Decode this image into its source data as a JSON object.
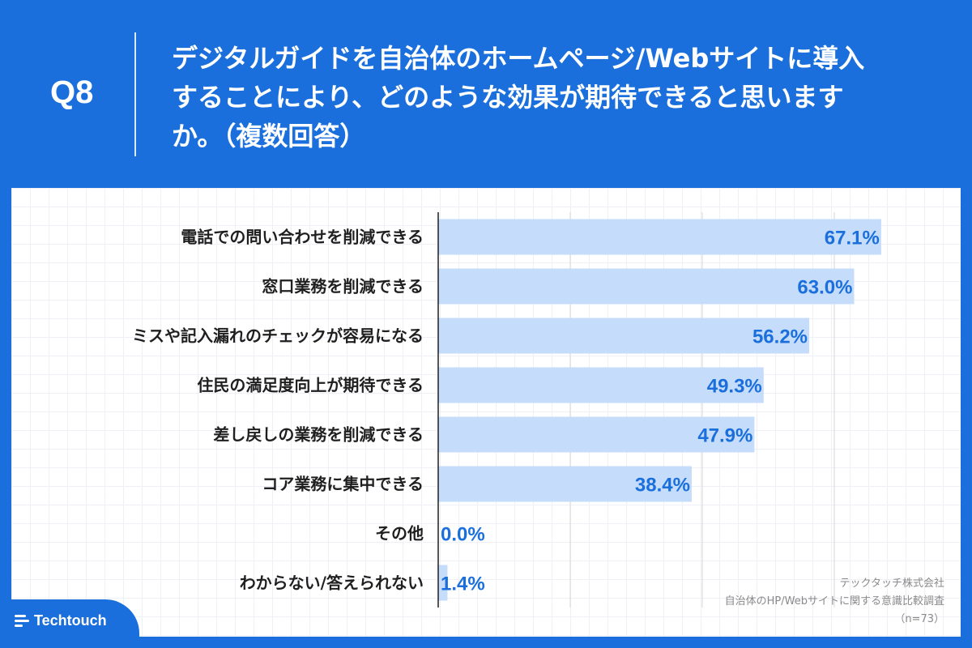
{
  "header": {
    "question_number": "Q8",
    "title": "デジタルガイドを自治体のホームページ/Webサイトに導入することにより、どのような効果が期待できると思いますか。（複数回答）"
  },
  "chart_data": {
    "type": "bar",
    "orientation": "horizontal",
    "title": "デジタルガイドを自治体のホームページ/Webサイトに導入することにより、どのような効果が期待できると思いますか。（複数回答）",
    "categories": [
      "電話での問い合わせを削減できる",
      "窓口業務を削減できる",
      "ミスや記入漏れのチェックが容易になる",
      "住民の満足度向上が期待できる",
      "差し戻しの業務を削減できる",
      "コア業務に集中できる",
      "その他",
      "わからない/答えられない"
    ],
    "values": [
      67.1,
      63.0,
      56.2,
      49.3,
      47.9,
      38.4,
      0.0,
      1.4
    ],
    "value_labels": [
      "67.1%",
      "63.0%",
      "56.2%",
      "49.3%",
      "47.9%",
      "38.4%",
      "0.0%",
      "1.4%"
    ],
    "unit": "%",
    "xlim": [
      0,
      70
    ],
    "grid": true,
    "bar_color": "#c5dcfa",
    "label_color": "#1a6fdc"
  },
  "source": {
    "company": "テックタッチ株式会社",
    "survey": "自治体のHP/Webサイトに関する意識比較調査",
    "sample": "（n=73）"
  },
  "brand": {
    "name": "Techtouch"
  }
}
